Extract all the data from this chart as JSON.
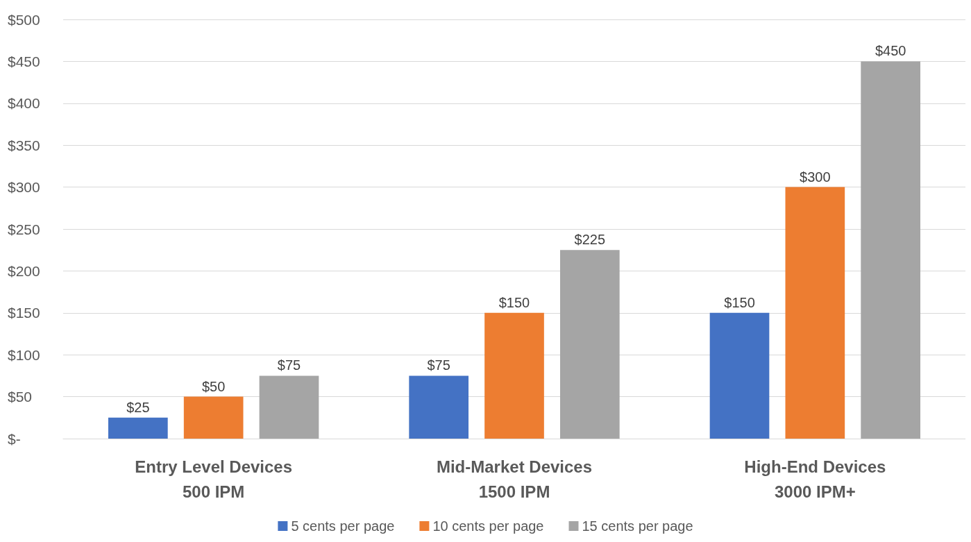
{
  "chart_data": {
    "type": "bar",
    "categories": [
      "Entry Level Devices\n500 IPM",
      "Mid-Market Devices\n1500 IPM",
      "High-End Devices\n3000 IPM+"
    ],
    "series": [
      {
        "name": "5 cents per page",
        "color": "#4472c4",
        "values": [
          25,
          75,
          150
        ],
        "value_labels": [
          "$25",
          "$75",
          "$150"
        ]
      },
      {
        "name": "10 cents per page",
        "color": "#ed7d31",
        "values": [
          50,
          150,
          300
        ],
        "value_labels": [
          "$50",
          "$150",
          "$300"
        ]
      },
      {
        "name": "15 cents per page",
        "color": "#a5a5a5",
        "values": [
          75,
          225,
          450
        ],
        "value_labels": [
          "$75",
          "$225",
          "$450"
        ]
      }
    ],
    "ylim": [
      0,
      500
    ],
    "yticks": [
      {
        "value": 0,
        "label": "$-"
      },
      {
        "value": 50,
        "label": "$50"
      },
      {
        "value": 100,
        "label": "$100"
      },
      {
        "value": 150,
        "label": "$150"
      },
      {
        "value": 200,
        "label": "$200"
      },
      {
        "value": 250,
        "label": "$250"
      },
      {
        "value": 300,
        "label": "$300"
      },
      {
        "value": 350,
        "label": "$350"
      },
      {
        "value": 400,
        "label": "$400"
      },
      {
        "value": 450,
        "label": "$450"
      },
      {
        "value": 500,
        "label": "$500"
      }
    ],
    "grid": true,
    "legend": "bottom"
  }
}
